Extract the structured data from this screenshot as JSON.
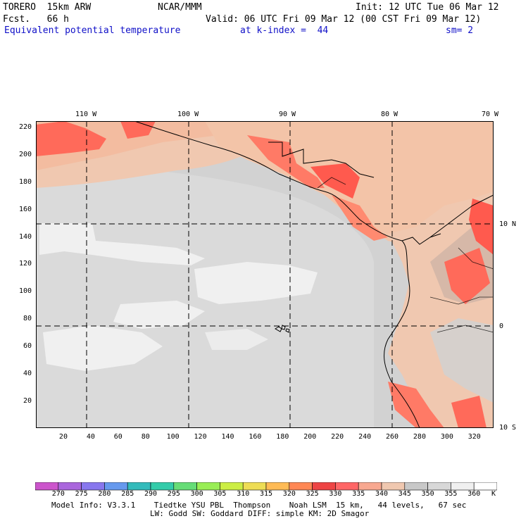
{
  "header": {
    "line1_left": "TORERO  15km ARW",
    "line1_center": "NCAR/MMM",
    "line1_right": "Init: 12 UTC Tue 06 Mar 12",
    "line2_left": "Fcst.   66 h",
    "line2_right": "Valid: 06 UTC Fri 09 Mar 12 (00 CST Fri 09 Mar 12)",
    "line3_field": "Equivalent potential temperature",
    "line3_level": "at k-index =  44",
    "line3_smooth": "sm= 2"
  },
  "map": {
    "top_longitude_labels": [
      "110 W",
      "100 W",
      "90 W",
      "80 W",
      "70 W"
    ],
    "right_latitude_labels": [
      "10 N",
      "0",
      "10 S"
    ],
    "left_grid_labels": [
      "220",
      "200",
      "180",
      "160",
      "140",
      "120",
      "100",
      "80",
      "60",
      "40",
      "20"
    ],
    "bottom_grid_labels": [
      "20",
      "40",
      "60",
      "80",
      "100",
      "120",
      "140",
      "160",
      "180",
      "200",
      "220",
      "240",
      "260",
      "280",
      "300",
      "320"
    ],
    "grid_x_range": [
      0,
      334
    ],
    "grid_y_range": [
      0,
      224
    ]
  },
  "colorbar": {
    "labels": [
      "270",
      "275",
      "280",
      "285",
      "290",
      "295",
      "300",
      "305",
      "310",
      "315",
      "320",
      "325",
      "330",
      "335",
      "340",
      "345",
      "350",
      "355",
      "360"
    ],
    "unit": "K",
    "colors": [
      "#cc55cc",
      "#aa66dd",
      "#8877ee",
      "#6699ee",
      "#33bbbb",
      "#33ccaa",
      "#66dd77",
      "#99ee55",
      "#ccee44",
      "#eedd55",
      "#ffbb55",
      "#ff8855",
      "#ee4444",
      "#ff6666",
      "#f8a890",
      "#f0c8b0",
      "#c8c8c8",
      "#d8d8d8",
      "#f0f0f0",
      "#ffffff"
    ]
  },
  "footer": {
    "line1": "Model Info: V3.3.1    Tiedtke YSU PBL  Thompson    Noah LSM  15 km,   44 levels,   67 sec",
    "line2": "LW: Godd SW: Goddard DIFF: simple KM: 2D Smagor"
  }
}
